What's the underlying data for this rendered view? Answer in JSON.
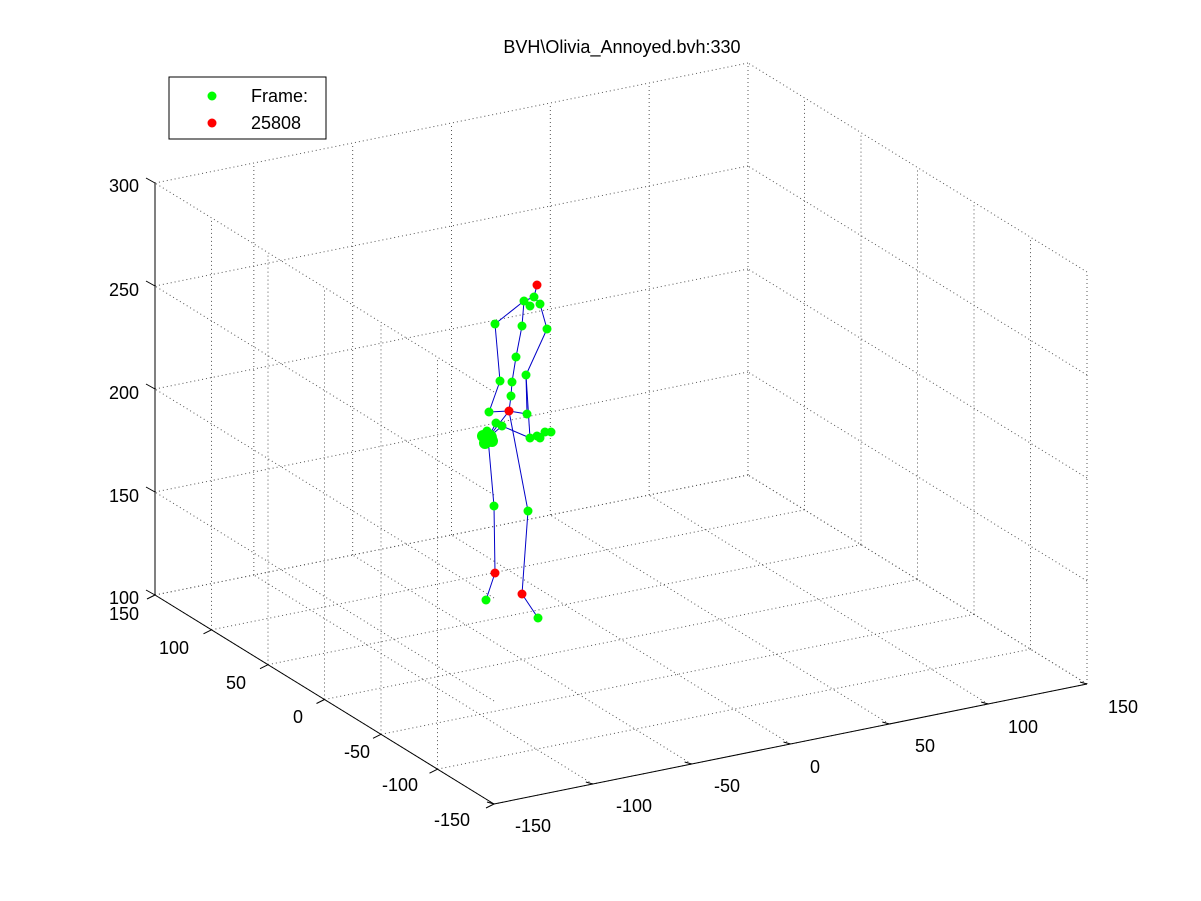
{
  "chart_data": {
    "type": "scatter",
    "title": "BVH\\Olivia_Annoyed.bvh:330",
    "legend": {
      "placement": "top-left",
      "entries": [
        {
          "label": "Frame:",
          "color": "#00ff00"
        },
        {
          "label": "25808",
          "color": "#ff0000"
        }
      ]
    },
    "grid": true,
    "axes": {
      "z_ticks": [
        "100",
        "150",
        "200",
        "250",
        "300"
      ],
      "y_ticks": [
        "150",
        "100",
        "50",
        "0",
        "-50",
        "-100",
        "-150"
      ],
      "x_ticks": [
        "-150",
        "-100",
        "-50",
        "0",
        "50",
        "100",
        "150"
      ]
    },
    "colors": {
      "joint": "#00ff00",
      "end_joint": "#ff0000",
      "bone": "#0000c8"
    }
  }
}
